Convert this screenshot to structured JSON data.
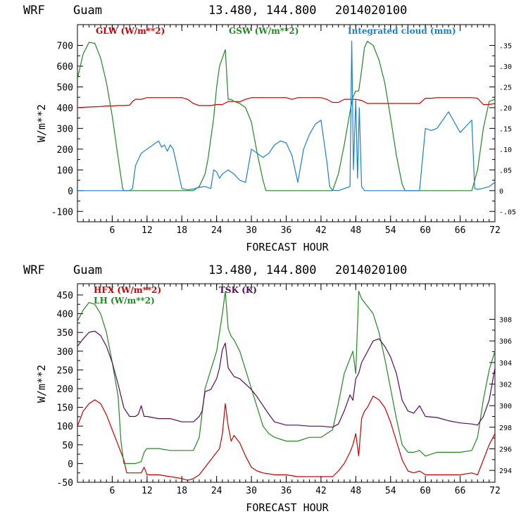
{
  "chart_data": [
    {
      "type": "line",
      "header": {
        "model": "WRF",
        "site": "Guam",
        "coords": "13.480, 144.800",
        "init": "2014020100"
      },
      "xlabel": "FORECAST HOUR",
      "ylabel": "W/m**2",
      "xlim": [
        0,
        72
      ],
      "ylim": [
        -150,
        800
      ],
      "x_ticks": [
        6,
        12,
        18,
        24,
        30,
        36,
        42,
        48,
        54,
        60,
        66,
        72
      ],
      "y_ticks": [
        -100,
        0,
        100,
        200,
        300,
        400,
        500,
        600,
        700
      ],
      "y2lim": [
        -0.075,
        0.4
      ],
      "y2_ticks": [
        -0.05,
        0,
        0.05,
        0.1,
        0.15,
        0.2,
        0.25,
        0.3,
        0.35
      ],
      "y2_tick_labels": [
        "-.05",
        "0",
        ".05",
        ".10",
        ".15",
        ".20",
        ".25",
        ".30",
        ".35"
      ],
      "legend": [
        {
          "label": "GLW (W/m**2)",
          "color": "#cc0000"
        },
        {
          "label": "GSW (W/m**2)",
          "color": "#228822"
        },
        {
          "label": "Integrated cloud (mm)",
          "color": "#1a7fd0"
        }
      ],
      "series": [
        {
          "name": "GLW",
          "axis": "left",
          "color": "#cc0000",
          "x": [
            0,
            2,
            4,
            5,
            6,
            7,
            8,
            9,
            9.5,
            10,
            11,
            12,
            13,
            14,
            15,
            16,
            17,
            18,
            19,
            20,
            21,
            22,
            23,
            24,
            25,
            26,
            27,
            28,
            29,
            30,
            31,
            32,
            33,
            34,
            35,
            36,
            37,
            38,
            39,
            40,
            41,
            42,
            43,
            44,
            45,
            46,
            47,
            48,
            49,
            50,
            51,
            52,
            53,
            54,
            55,
            56,
            57,
            58,
            59,
            60,
            61,
            62,
            63,
            64,
            65,
            66,
            67,
            68,
            69,
            70,
            71,
            72
          ],
          "y": [
            400,
            403,
            405,
            408,
            408,
            410,
            410,
            412,
            430,
            440,
            440,
            448,
            448,
            448,
            448,
            448,
            448,
            448,
            440,
            420,
            410,
            410,
            410,
            415,
            415,
            430,
            430,
            428,
            440,
            448,
            448,
            448,
            448,
            448,
            448,
            448,
            440,
            448,
            448,
            448,
            448,
            448,
            440,
            425,
            425,
            440,
            440,
            440,
            435,
            420,
            420,
            420,
            420,
            420,
            420,
            420,
            420,
            420,
            420,
            445,
            445,
            448,
            448,
            448,
            448,
            448,
            448,
            448,
            445,
            415,
            415,
            420
          ]
        },
        {
          "name": "GSW",
          "axis": "left",
          "color": "#228822",
          "x": [
            0,
            1,
            2,
            3,
            4,
            5,
            6,
            7,
            7.8,
            8,
            20,
            21,
            22,
            22.5,
            23,
            23.5,
            24,
            24.5,
            25,
            25.5,
            26,
            26.5,
            27,
            28,
            29,
            30,
            31,
            32,
            32.5,
            44,
            45,
            46,
            47,
            47.5,
            48,
            48.5,
            49,
            49.5,
            50,
            51,
            52,
            53,
            54,
            55,
            56,
            56.5,
            68,
            69,
            70,
            71,
            72
          ],
          "y": [
            540,
            660,
            715,
            710,
            640,
            520,
            360,
            160,
            10,
            0,
            0,
            20,
            80,
            150,
            250,
            350,
            500,
            600,
            640,
            680,
            440,
            440,
            430,
            420,
            400,
            330,
            180,
            50,
            0,
            0,
            80,
            220,
            380,
            450,
            480,
            480,
            580,
            690,
            720,
            700,
            630,
            520,
            350,
            170,
            30,
            0,
            0,
            100,
            300,
            430,
            440
          ]
        },
        {
          "name": "Integrated cloud",
          "axis": "right",
          "color": "#1a7fd0",
          "x": [
            0,
            9,
            9.5,
            10,
            11,
            12,
            13,
            14,
            14.5,
            15,
            15.5,
            16,
            16.5,
            17,
            18,
            19,
            20,
            21,
            22,
            23,
            23.5,
            24,
            24.5,
            25,
            26,
            27,
            28,
            29,
            30,
            31,
            32,
            33,
            34,
            35,
            36,
            37,
            38,
            39,
            40,
            41,
            42,
            43,
            43.5,
            44,
            45,
            46,
            47,
            47.3,
            47.6,
            48,
            48.3,
            48.6,
            49,
            49.5,
            50,
            56,
            58,
            59,
            60,
            61,
            62,
            63,
            64,
            65,
            66,
            67,
            68,
            68.5,
            69,
            70,
            71,
            72
          ],
          "y": [
            0,
            0,
            0.005,
            0.06,
            0.09,
            0.1,
            0.11,
            0.12,
            0.105,
            0.11,
            0.095,
            0.11,
            0.1,
            0.07,
            0.005,
            0.002,
            0.004,
            0.008,
            0.01,
            0.005,
            0.05,
            0.045,
            0.03,
            0.04,
            0.05,
            0.04,
            0.025,
            0.02,
            0.1,
            0.09,
            0.08,
            0.09,
            0.11,
            0.12,
            0.115,
            0.085,
            0.02,
            0.1,
            0.135,
            0.16,
            0.17,
            0.07,
            0.01,
            0.001,
            0,
            0.005,
            0.01,
            0.36,
            0.05,
            0.22,
            0.03,
            0.2,
            0.01,
            0,
            0,
            0,
            0,
            0,
            0.15,
            0.145,
            0.15,
            0.17,
            0.19,
            0.165,
            0.14,
            0.155,
            0.17,
            0.005,
            0.003,
            0.006,
            0.01,
            0.02
          ]
        }
      ]
    },
    {
      "type": "line",
      "header": {
        "model": "WRF",
        "site": "Guam",
        "coords": "13.480, 144.800",
        "init": "2014020100"
      },
      "xlabel": "FORECAST HOUR",
      "ylabel": "W/m**2",
      "xlim": [
        0,
        72
      ],
      "ylim": [
        -50,
        480
      ],
      "x_ticks": [
        6,
        12,
        18,
        24,
        30,
        36,
        42,
        48,
        54,
        60,
        66,
        72
      ],
      "y_ticks": [
        -50,
        0,
        50,
        100,
        150,
        200,
        250,
        300,
        350,
        400,
        450
      ],
      "y2lim": [
        292.9,
        311.3
      ],
      "y2_ticks": [
        294,
        296,
        298,
        300,
        302,
        304,
        306,
        308
      ],
      "y2_tick_labels": [
        "294",
        "296",
        "298",
        "300",
        "302",
        "304",
        "306",
        "308"
      ],
      "legend": [
        {
          "label": "HFX (W/m**2)",
          "color": "#cc0000"
        },
        {
          "label": "LH  (W/m**2)",
          "color": "#228822"
        },
        {
          "label": "TSK (K)",
          "color": "#5a0a5a"
        }
      ],
      "series": [
        {
          "name": "HFX",
          "axis": "left",
          "color": "#cc0000",
          "x": [
            0,
            1,
            2,
            3,
            4,
            5,
            6,
            7,
            8,
            8.5,
            10,
            11,
            11.5,
            12,
            14,
            16,
            18,
            19,
            20,
            21,
            22,
            23,
            24,
            24.5,
            25,
            25.5,
            26,
            26.5,
            27,
            28,
            29,
            30,
            31,
            32,
            34,
            36,
            38,
            40,
            42,
            44,
            45,
            46,
            47,
            47.5,
            48,
            48.5,
            49,
            49.5,
            50,
            51,
            52,
            53,
            54,
            55,
            56,
            57,
            58,
            59,
            60,
            62,
            64,
            66,
            68,
            69,
            70,
            71,
            72
          ],
          "y": [
            100,
            140,
            160,
            170,
            160,
            130,
            90,
            50,
            10,
            -25,
            -25,
            -25,
            -10,
            -30,
            -30,
            -35,
            -40,
            -45,
            -40,
            -30,
            -10,
            10,
            30,
            40,
            80,
            160,
            100,
            60,
            75,
            55,
            20,
            -10,
            -20,
            -25,
            -30,
            -30,
            -35,
            -35,
            -35,
            -35,
            -20,
            0,
            30,
            50,
            80,
            20,
            120,
            140,
            150,
            180,
            170,
            150,
            110,
            60,
            10,
            -20,
            -25,
            -20,
            -30,
            -30,
            -30,
            -30,
            -25,
            -30,
            10,
            50,
            80
          ]
        },
        {
          "name": "LH",
          "axis": "left",
          "color": "#228822",
          "x": [
            0,
            1,
            2,
            3,
            4,
            5,
            6,
            7,
            7.5,
            8,
            10,
            11,
            11.5,
            12,
            14,
            16,
            18,
            20,
            21,
            22,
            23,
            24,
            24.5,
            25,
            25.5,
            26,
            26.5,
            27,
            28,
            29,
            30,
            31,
            32,
            33,
            34,
            36,
            38,
            40,
            42,
            44,
            45,
            46,
            47,
            47.5,
            48,
            48.5,
            49,
            49.5,
            50,
            51,
            52,
            53,
            54,
            55,
            56,
            57,
            58,
            59,
            60,
            62,
            64,
            66,
            68,
            69,
            70,
            71,
            72
          ],
          "y": [
            380,
            410,
            430,
            425,
            400,
            350,
            270,
            180,
            60,
            0,
            0,
            5,
            30,
            40,
            40,
            35,
            35,
            35,
            70,
            200,
            250,
            300,
            350,
            400,
            460,
            360,
            340,
            330,
            300,
            250,
            200,
            150,
            100,
            80,
            70,
            60,
            60,
            70,
            70,
            90,
            160,
            240,
            280,
            300,
            240,
            460,
            440,
            430,
            420,
            400,
            350,
            280,
            200,
            120,
            50,
            30,
            30,
            35,
            20,
            30,
            30,
            30,
            35,
            70,
            170,
            250,
            300
          ]
        },
        {
          "name": "TSK",
          "axis": "right",
          "color": "#5a0a5a",
          "x": [
            0,
            1,
            2,
            3,
            4,
            5,
            6,
            7,
            8,
            9,
            10,
            10.5,
            11,
            11.5,
            12,
            14,
            16,
            18,
            20,
            21,
            21.5,
            22,
            23,
            24,
            24.5,
            25,
            25.5,
            26,
            27,
            28,
            29,
            30,
            31,
            32,
            33,
            34,
            36,
            38,
            40,
            42,
            44,
            45,
            46,
            47,
            47.5,
            48,
            48.5,
            49,
            50,
            51,
            52,
            53,
            54,
            55,
            56,
            57,
            58,
            59,
            60,
            62,
            64,
            66,
            68,
            69,
            70,
            71,
            72
          ],
          "y": [
            305.5,
            306.2,
            306.8,
            306.9,
            306.5,
            305.5,
            304,
            302,
            299.8,
            299,
            299,
            299.2,
            300,
            299,
            299,
            298.8,
            298.8,
            298.5,
            298.5,
            299,
            299.5,
            301.3,
            301.5,
            302.5,
            303.5,
            305.2,
            305.8,
            303.5,
            302.7,
            302.5,
            302,
            301.5,
            300.8,
            300,
            299.2,
            298.5,
            298.2,
            298.2,
            298.1,
            298.1,
            298,
            298.3,
            299.5,
            301,
            300.5,
            302.5,
            303,
            304,
            305,
            306,
            306.2,
            305.5,
            304.5,
            303,
            300.5,
            299.5,
            299.3,
            300,
            299,
            298.9,
            298.6,
            298.4,
            298.3,
            298.2,
            299,
            300.5,
            303.5
          ]
        }
      ]
    }
  ]
}
